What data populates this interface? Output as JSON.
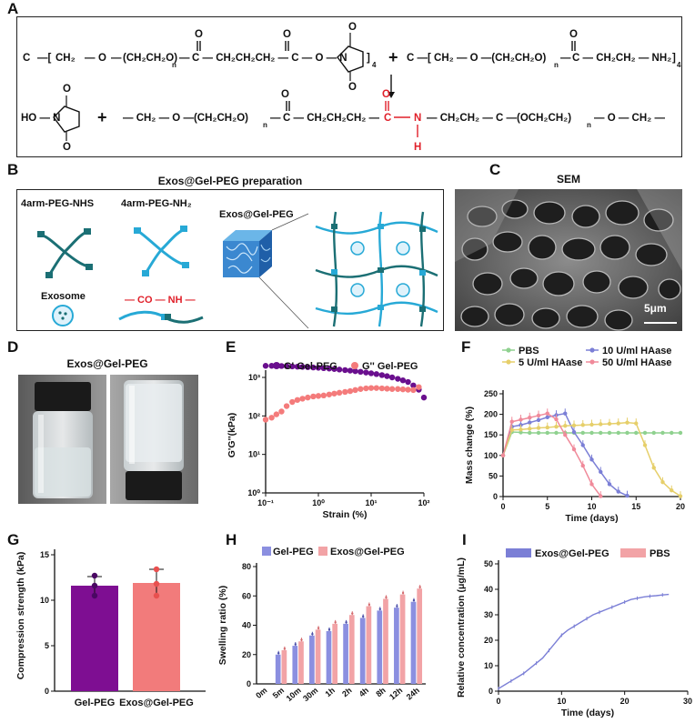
{
  "panels": {
    "A": "A",
    "B": "B",
    "C": "C",
    "D": "D",
    "E": "E",
    "F": "F",
    "G": "G",
    "H": "H",
    "I": "I"
  },
  "panel_a": {
    "r1_c": "C",
    "r1_ch2": "CH₂",
    "r1_o": "O",
    "r1_peg": "(CH₂CH₂O)",
    "r1_n": "n",
    "r1_chain": "C — CH₂CH₂CH₂ — C — O — N",
    "r1_sub4": "4",
    "plus": "+",
    "r1b_chain": "C —[ CH₂ — O —(CH₂CH₂O)",
    "r1b_rest": "C — CH₂CH₂ — NH₂",
    "r1b_sub4": "4",
    "r2_ho": "HO — N",
    "r2_chain_left": "— CH₂ — O —(CH₂CH₂O)",
    "r2_c1": "C — CH₂CH₂CH₂ —",
    "r2_amide_c": "C",
    "r2_amide_n": "N",
    "r2_amide_h": "H",
    "r2_right": "— CH₂CH₂ — C —(OCH₂CH₂)",
    "r2_end": "— O — CH₂ —",
    "o": "O"
  },
  "panel_b": {
    "title": "Exos@Gel-PEG preparation",
    "nhs_label": "4arm-PEG-NHS",
    "nh2_label": "4arm-PEG-NH₂",
    "exosome_label": "Exosome",
    "amide_label": "— CO — NH —",
    "gel_label": "Exos@Gel-PEG"
  },
  "panel_c": {
    "title": "SEM",
    "scale": "5μm"
  },
  "panel_d": {
    "title": "Exos@Gel-PEG"
  },
  "panel_e": {
    "legend_g1": "G' Gel-PEG",
    "legend_g2": "G'' Gel-PEG",
    "ylabel": "G'G''(kPa)",
    "xlabel": "Strain (%)",
    "yticks": [
      "10³",
      "10²",
      "10¹",
      "10⁰"
    ],
    "xticks": [
      "10⁻¹",
      "10⁰",
      "10¹",
      "10²"
    ]
  },
  "panel_f": {
    "legend": [
      "PBS",
      "10 U/ml HAase",
      "5 U/ml HAase",
      "50 U/ml HAase"
    ],
    "ylabel": "Mass change (%)",
    "xlabel": "Time (days)",
    "yticks": [
      "250",
      "200",
      "150",
      "100",
      "50",
      "0"
    ],
    "xticks": [
      "0",
      "5",
      "10",
      "15",
      "20"
    ]
  },
  "panel_g": {
    "ylabel": "Compression strength (kPa)",
    "yticks": [
      "15",
      "10",
      "5",
      "0"
    ],
    "cats": [
      "Gel-PEG",
      "Exos@Gel-PEG"
    ]
  },
  "panel_h": {
    "legend": [
      "Gel-PEG",
      "Exos@Gel-PEG"
    ],
    "ylabel": "Swelling ratio (%)",
    "yticks": [
      "80",
      "60",
      "40",
      "20",
      "0"
    ],
    "cats": [
      "0m",
      "5m",
      "10m",
      "30m",
      "1h",
      "2h",
      "4h",
      "8h",
      "12h",
      "24h"
    ]
  },
  "panel_i": {
    "legend": [
      "Exos@Gel-PEG",
      "PBS"
    ],
    "ylabel": "Relative concentration (μg/mL)",
    "xlabel": "Time (days)",
    "yticks": [
      "50",
      "40",
      "30",
      "20",
      "10",
      "0"
    ],
    "xticks": [
      "0",
      "10",
      "20",
      "30"
    ]
  },
  "colors": {
    "purple": "#6a0f8e",
    "salmon": "#f47b7b",
    "green": "#8fd18f",
    "blue": "#7b7fd6",
    "yellow": "#e6cf6a",
    "pink": "#f08a9a",
    "barpurple": "#7e0e92",
    "barsalmon": "#f27b7b",
    "hblue": "#8b8fe0",
    "hpink": "#f2a3a6",
    "teal": "#1b6f74",
    "lightblue": "#27a9d6"
  },
  "chart_data": [
    {
      "panel": "E",
      "type": "scatter",
      "xscale": "log",
      "yscale": "log",
      "xlim": [
        0.1,
        100
      ],
      "ylim": [
        1,
        5000
      ],
      "xlabel": "Strain (%)",
      "ylabel": "G'G''(kPa)",
      "legend_placement": "top",
      "series": [
        {
          "name": "G' Gel-PEG",
          "color": "#6a0f8e",
          "x": [
            0.1,
            0.13,
            0.16,
            0.2,
            0.25,
            0.32,
            0.4,
            0.5,
            0.63,
            0.8,
            1,
            1.26,
            1.6,
            2,
            2.5,
            3.2,
            4,
            5,
            6.3,
            8,
            10,
            12.6,
            16,
            20,
            25,
            32,
            40,
            50,
            63,
            80,
            100
          ],
          "y": [
            2000,
            2000,
            2000,
            1980,
            1960,
            1930,
            1900,
            1880,
            1850,
            1810,
            1780,
            1740,
            1700,
            1650,
            1600,
            1550,
            1500,
            1450,
            1400,
            1340,
            1280,
            1220,
            1150,
            1080,
            1000,
            920,
            840,
            760,
            620,
            480,
            300
          ]
        },
        {
          "name": "G'' Gel-PEG",
          "color": "#f47b7b",
          "x": [
            0.1,
            0.13,
            0.16,
            0.2,
            0.25,
            0.32,
            0.4,
            0.5,
            0.63,
            0.8,
            1,
            1.26,
            1.6,
            2,
            2.5,
            3.2,
            4,
            5,
            6.3,
            8,
            10,
            12.6,
            16,
            20,
            25,
            32,
            40,
            50,
            63,
            80
          ],
          "y": [
            80,
            90,
            110,
            130,
            180,
            230,
            260,
            280,
            300,
            320,
            330,
            340,
            360,
            380,
            400,
            420,
            440,
            470,
            500,
            520,
            530,
            530,
            520,
            510,
            500,
            500,
            490,
            480,
            470,
            560
          ]
        }
      ]
    },
    {
      "panel": "F",
      "type": "line",
      "xlim": [
        0,
        20
      ],
      "ylim": [
        0,
        250
      ],
      "xlabel": "Time (days)",
      "ylabel": "Mass change (%)",
      "series": [
        {
          "name": "PBS",
          "color": "#8fd18f",
          "x": [
            0,
            1,
            2,
            3,
            4,
            5,
            6,
            7,
            8,
            9,
            10,
            11,
            12,
            13,
            14,
            15,
            16,
            17,
            18,
            19,
            20
          ],
          "y": [
            100,
            157,
            156,
            155,
            155,
            155,
            155,
            155,
            155,
            155,
            155,
            155,
            155,
            155,
            155,
            155,
            155,
            155,
            155,
            155,
            155
          ]
        },
        {
          "name": "10 U/ml HAase",
          "color": "#7b7fd6",
          "x": [
            0,
            1,
            2,
            3,
            4,
            5,
            6,
            7,
            8,
            9,
            10,
            11,
            12,
            13,
            14
          ],
          "y": [
            100,
            170,
            174,
            180,
            186,
            193,
            198,
            202,
            157,
            125,
            90,
            60,
            30,
            12,
            2
          ]
        },
        {
          "name": "5 U/ml HAase",
          "color": "#e6cf6a",
          "x": [
            0,
            1,
            2,
            3,
            4,
            5,
            6,
            7,
            8,
            9,
            10,
            11,
            12,
            13,
            14,
            15,
            16,
            17,
            18,
            19,
            20
          ],
          "y": [
            100,
            162,
            163,
            165,
            167,
            168,
            170,
            172,
            173,
            174,
            175,
            176,
            177,
            178,
            180,
            178,
            125,
            70,
            35,
            15,
            1
          ]
        },
        {
          "name": "50 U/ml HAase",
          "color": "#f08a9a",
          "x": [
            0,
            1,
            2,
            3,
            4,
            5,
            6,
            7,
            8,
            9,
            10,
            11
          ],
          "y": [
            100,
            182,
            187,
            192,
            197,
            202,
            188,
            150,
            115,
            75,
            30,
            1
          ]
        }
      ]
    },
    {
      "panel": "G",
      "type": "bar",
      "ylim": [
        0,
        15
      ],
      "ylabel": "Compression strength (kPa)",
      "categories": [
        "Gel-PEG",
        "Exos@Gel-PEG"
      ],
      "values": [
        11.6,
        11.9
      ],
      "errors": [
        1.0,
        1.5
      ],
      "points": [
        [
          12.7,
          10.5,
          11.6
        ],
        [
          13.4,
          10.5,
          11.8
        ]
      ],
      "colors": [
        "#7e0e92",
        "#f27b7b"
      ]
    },
    {
      "panel": "H",
      "type": "bar",
      "ylim": [
        0,
        80
      ],
      "ylabel": "Swelling ratio (%)",
      "categories": [
        "0m",
        "5m",
        "10m",
        "30m",
        "1h",
        "2h",
        "4h",
        "8h",
        "12h",
        "24h"
      ],
      "series": [
        {
          "name": "Gel-PEG",
          "color": "#8b8fe0",
          "values": [
            0,
            20,
            26,
            33,
            36,
            41,
            45,
            50,
            52,
            56
          ]
        },
        {
          "name": "Exos@Gel-PEG",
          "color": "#f2a3a6",
          "values": [
            0,
            23,
            29,
            37,
            41,
            47,
            53,
            58,
            61,
            65
          ]
        }
      ]
    },
    {
      "panel": "I",
      "type": "line",
      "xlim": [
        0,
        30
      ],
      "ylim": [
        0,
        50
      ],
      "xlabel": "Time (days)",
      "ylabel": "Relative concentration (μg/mL)",
      "series": [
        {
          "name": "Exos@Gel-PEG",
          "color": "#7b7fd6",
          "x": [
            0,
            1,
            2,
            3,
            4,
            5,
            6,
            7,
            8,
            9,
            10,
            11,
            12,
            13,
            14,
            15,
            16,
            17,
            18,
            19,
            20,
            21,
            22,
            23,
            24,
            25,
            26,
            27
          ],
          "y": [
            1,
            2.5,
            4,
            5.5,
            7,
            9,
            11,
            13,
            16,
            19,
            22,
            24,
            25.5,
            27,
            28.5,
            30,
            31,
            32,
            33,
            34,
            35,
            36,
            36.5,
            37,
            37.3,
            37.5,
            37.8,
            38
          ]
        },
        {
          "name": "PBS",
          "color": "#f2a3a6",
          "x": [],
          "y": []
        }
      ]
    }
  ]
}
